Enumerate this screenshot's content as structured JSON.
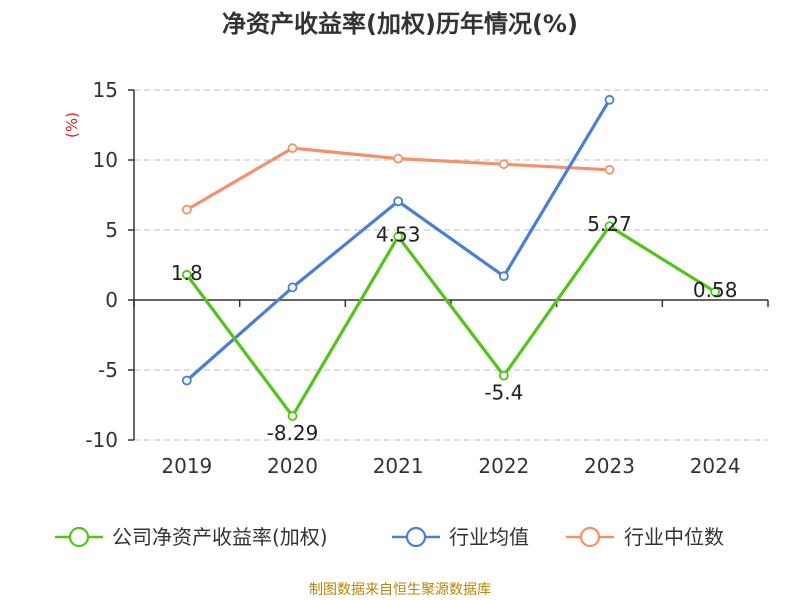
{
  "chart_data": {
    "type": "line",
    "title": "净资产收益率(加权)历年情况(%)",
    "ylabel": "(%)",
    "categories": [
      "2019",
      "2020",
      "2021",
      "2022",
      "2023",
      "2024"
    ],
    "ylim": [
      -10,
      15
    ],
    "yticks": [
      -10,
      -5,
      0,
      5,
      10,
      15
    ],
    "grid": true,
    "legend_position": "bottom",
    "series": [
      {
        "name": "公司净资产收益率(加权)",
        "color": "#52c41a",
        "values": [
          1.8,
          -8.29,
          4.53,
          -5.4,
          5.27,
          0.58
        ],
        "labels": [
          "1.8",
          "-8.29",
          "4.53",
          "-5.4",
          "5.27",
          "0.58"
        ]
      },
      {
        "name": "行业均值",
        "color": "#4a7fd6",
        "values": [
          -5.75,
          0.9,
          7.05,
          1.7,
          14.3,
          null
        ]
      },
      {
        "name": "行业中位数",
        "color": "#f5906a",
        "values": [
          6.45,
          10.85,
          10.1,
          9.7,
          9.3,
          null
        ]
      }
    ]
  },
  "footer": {
    "source": "制图数据来自恒生聚源数据库"
  }
}
